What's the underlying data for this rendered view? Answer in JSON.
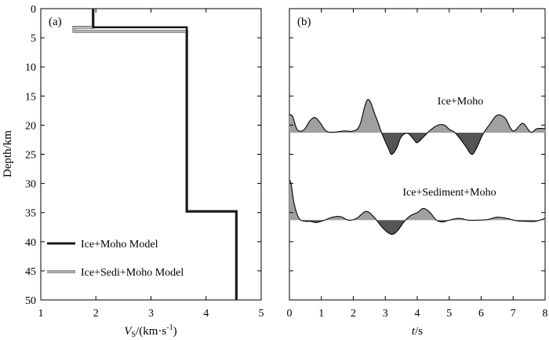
{
  "chart_data": [
    {
      "type": "line",
      "panel_label": "(a)",
      "xlabel_italic": "V",
      "xlabel_sub": "S",
      "xlabel_rest": "/(km·s",
      "xlabel_sup": "-1",
      "xlabel_close": ")",
      "ylabel": "Depth/km",
      "xlim": [
        1,
        5
      ],
      "ylim": [
        0,
        50
      ],
      "xticks": [
        1,
        2,
        3,
        4,
        5
      ],
      "yticks": [
        0,
        5,
        10,
        15,
        20,
        25,
        30,
        35,
        40,
        45,
        50
      ],
      "series": [
        {
          "name": "Ice+Moho Model",
          "color": "#1a1a1a",
          "points": [
            [
              1.95,
              0
            ],
            [
              1.95,
              3.2
            ],
            [
              3.65,
              3.2
            ],
            [
              3.65,
              34.8
            ],
            [
              4.55,
              34.8
            ],
            [
              4.55,
              50
            ]
          ]
        },
        {
          "name": "Ice+Sedi+Moho Model",
          "color": "#777777",
          "points": [
            [
              1.95,
              0
            ],
            [
              1.95,
              3.2
            ],
            [
              1.6,
              3.2
            ],
            [
              1.6,
              3.9
            ],
            [
              3.65,
              3.9
            ],
            [
              3.65,
              34.8
            ],
            [
              4.55,
              34.8
            ],
            [
              4.55,
              50
            ]
          ]
        }
      ],
      "legend_position": "bottom-left"
    },
    {
      "type": "line",
      "panel_label": "(b)",
      "xlabel_italic": "t",
      "xlabel_rest": "/s",
      "xlim": [
        0,
        8
      ],
      "ylim": [
        0,
        50
      ],
      "xticks": [
        0,
        1,
        2,
        3,
        4,
        5,
        6,
        7,
        8
      ],
      "series": [
        {
          "name": "Ice+Moho",
          "baseline_depth": 21.3,
          "t": [
            0,
            0.1,
            0.25,
            0.45,
            0.65,
            0.8,
            0.95,
            1.15,
            1.4,
            1.7,
            2.0,
            2.2,
            2.45,
            2.7,
            2.9,
            3.1,
            3.2,
            3.35,
            3.5,
            3.7,
            3.9,
            4.0,
            4.2,
            4.4,
            4.65,
            4.85,
            5.0,
            5.2,
            5.5,
            5.7,
            5.85,
            6.05,
            6.25,
            6.5,
            6.75,
            7.0,
            7.3,
            7.55,
            7.75,
            8.0
          ],
          "depth": [
            18.2,
            18.5,
            20.8,
            20.8,
            19.2,
            18.7,
            19.5,
            21.0,
            21.2,
            21.0,
            21.0,
            20.0,
            15.6,
            18.5,
            21.5,
            24.0,
            25.0,
            24.0,
            22.0,
            21.4,
            22.5,
            23.0,
            22.0,
            20.9,
            20.0,
            20.0,
            20.7,
            21.4,
            23.5,
            25.0,
            24.0,
            21.6,
            20.0,
            18.3,
            18.8,
            21.0,
            19.7,
            21.2,
            20.6,
            20.6
          ]
        },
        {
          "name": "Ice+Sediment+Moho",
          "baseline_depth": 36.3,
          "t": [
            0,
            0.05,
            0.15,
            0.3,
            0.5,
            0.65,
            0.85,
            1.1,
            1.35,
            1.6,
            1.85,
            2.1,
            2.4,
            2.65,
            2.9,
            3.1,
            3.25,
            3.4,
            3.6,
            3.8,
            4.0,
            4.2,
            4.4,
            4.6,
            4.8,
            5.0,
            5.3,
            5.6,
            5.9,
            6.2,
            6.5,
            6.8,
            7.1,
            7.4,
            7.7,
            8.0
          ],
          "depth": [
            29.5,
            30.0,
            33.5,
            36.0,
            36.5,
            36.5,
            36.7,
            36.3,
            35.8,
            35.7,
            36.3,
            36.0,
            34.8,
            35.8,
            37.5,
            38.5,
            38.7,
            38.0,
            36.5,
            35.5,
            35.0,
            34.3,
            35.0,
            36.3,
            36.6,
            36.3,
            36.0,
            36.3,
            36.3,
            36.2,
            35.8,
            36.0,
            36.4,
            36.5,
            36.5,
            36.0
          ]
        }
      ],
      "annotations": [
        "Ice+Moho",
        "Ice+Sediment+Moho"
      ]
    }
  ]
}
